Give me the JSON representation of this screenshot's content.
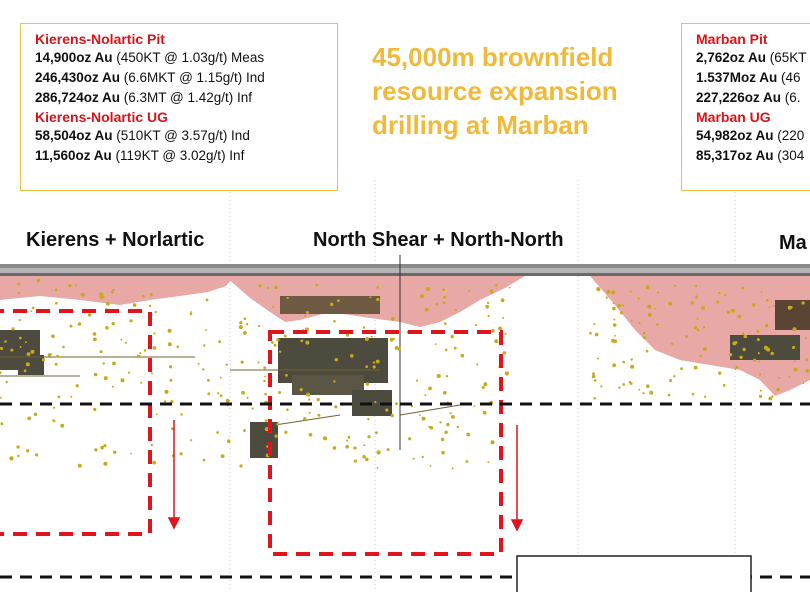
{
  "headline": [
    "45,000m brownfield",
    "resource expansion",
    "drilling at Marban"
  ],
  "left_box": {
    "sections": [
      {
        "heading": "Kierens-Nolartic Pit",
        "lines": [
          {
            "oz": "14,900oz Au",
            "detail": " (450KT @ 1.03g/t) Meas"
          },
          {
            "oz": "246,430oz Au",
            "detail": " (6.6MKT @ 1.15g/t) Ind"
          },
          {
            "oz": "286,724oz Au",
            "detail": " (6.3MT @ 1.42g/t) Inf"
          }
        ]
      },
      {
        "heading": "Kierens-Nolartic UG",
        "lines": [
          {
            "oz": "58,504oz Au",
            "detail": " (510KT @ 3.57g/t) Ind"
          },
          {
            "oz": "11,560oz Au",
            "detail": " (119KT @ 3.02g/t) Inf"
          }
        ]
      }
    ]
  },
  "right_box": {
    "sections": [
      {
        "heading": "Marban Pit",
        "lines": [
          {
            "oz": "2,762oz Au",
            "detail": " (65KT"
          },
          {
            "oz": "1.537Moz Au",
            "detail": " (46"
          },
          {
            "oz": "227,226oz Au",
            "detail": " (6."
          }
        ]
      },
      {
        "heading": "Marban UG",
        "lines": [
          {
            "oz": "54,982oz Au",
            "detail": " (220"
          },
          {
            "oz": "85,317oz Au",
            "detail": " (304"
          }
        ]
      }
    ]
  },
  "zones": {
    "kierens": "Kierens + Norlartic",
    "north_shear": "North Shear + North-North",
    "marban": "Ma"
  },
  "colors": {
    "pit_shell": "#e8a9a6",
    "target_box": "#e0141c",
    "ug_cutoff": "#111111",
    "drill_intercepts": "#c9a81a",
    "headline": "#f0b93a",
    "box_border": "#e8c44a"
  }
}
